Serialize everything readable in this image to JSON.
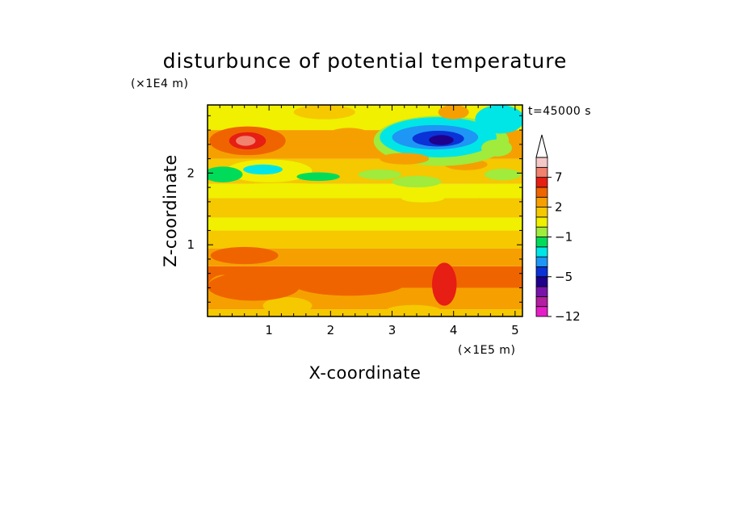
{
  "chart_data": {
    "type": "heatmap",
    "title": "disturbunce of potential temperature",
    "xlabel": "X-coordinate",
    "ylabel": "Z-coordinate",
    "x_unit": "(×1E5 m)",
    "y_unit": "(×1E4 m)",
    "time_label": "t=45000 s",
    "xlim": [
      0,
      5.12
    ],
    "ylim": [
      0,
      2.95
    ],
    "xticks": [
      "1",
      "2",
      "3",
      "4",
      "5"
    ],
    "yticks": [
      "1",
      "2"
    ],
    "xtick_values": [
      1,
      2,
      3,
      4,
      5
    ],
    "ytick_values": [
      1,
      2
    ],
    "colorbar": {
      "levels": [
        -12,
        -11,
        -9,
        -7,
        -5,
        -4,
        -3,
        -2,
        -1,
        0,
        1,
        2,
        3,
        5,
        7,
        9
      ],
      "labeled_levels": [
        "7",
        "2",
        "−1",
        "−5",
        "−12"
      ],
      "labeled_level_values": [
        7,
        2,
        -1,
        -5,
        -12
      ],
      "extend": "max",
      "colors": [
        "#e61ec8",
        "#b41ea0",
        "#7814aa",
        "#1e008c",
        "#0a32d7",
        "#1e96f5",
        "#00e6e6",
        "#00dc5a",
        "#a0eb3c",
        "#f0f000",
        "#f5c800",
        "#f5a000",
        "#f06400",
        "#e61e14",
        "#f0826e",
        "#f5c8c8",
        "#ffffff"
      ]
    },
    "bands": [
      {
        "z": [
          0.0,
          0.1
        ],
        "value": 0.5
      },
      {
        "z": [
          0.1,
          0.4
        ],
        "value": 1.5
      },
      {
        "z": [
          0.4,
          0.7
        ],
        "value": 2.5
      },
      {
        "z": [
          0.7,
          0.95
        ],
        "value": 1.5
      },
      {
        "z": [
          0.95,
          1.2
        ],
        "value": 0.5
      },
      {
        "z": [
          1.2,
          1.38
        ],
        "value": -0.5
      },
      {
        "z": [
          1.38,
          1.65
        ],
        "value": 0.5
      },
      {
        "z": [
          1.65,
          1.85
        ],
        "value": -0.5
      },
      {
        "z": [
          1.85,
          2.2
        ],
        "value": 0.5
      },
      {
        "z": [
          2.2,
          2.6
        ],
        "value": 1.5
      },
      {
        "z": [
          2.6,
          2.95
        ],
        "value": -0.5
      }
    ],
    "features": [
      {
        "x": 0.25,
        "z": 0.38,
        "rx": 0.26,
        "rz": 0.2,
        "value": 1.5
      },
      {
        "x": 1.3,
        "z": 0.15,
        "rx": 0.4,
        "rz": 0.12,
        "value": 0.5
      },
      {
        "x": 3.35,
        "z": 0.08,
        "rx": 0.45,
        "rz": 0.08,
        "value": 0.5
      },
      {
        "x": 0.75,
        "z": 0.42,
        "rx": 0.75,
        "rz": 0.2,
        "value": 2.5
      },
      {
        "x": 2.3,
        "z": 0.45,
        "rx": 0.9,
        "rz": 0.16,
        "value": 2.5
      },
      {
        "x": 3.85,
        "z": 0.45,
        "rx": 0.2,
        "rz": 0.3,
        "value": 4
      },
      {
        "x": 0.6,
        "z": 0.85,
        "rx": 0.55,
        "rz": 0.12,
        "value": 2.5
      },
      {
        "x": 1.2,
        "z": 1.78,
        "rx": 1.1,
        "rz": 0.08,
        "value": -0.5
      },
      {
        "x": 2.0,
        "z": 1.52,
        "rx": 0.35,
        "rz": 0.08,
        "value": 0.5
      },
      {
        "x": 3.2,
        "z": 1.55,
        "rx": 0.8,
        "rz": 0.1,
        "value": 0.5
      },
      {
        "x": 4.4,
        "z": 1.75,
        "rx": 0.5,
        "rz": 0.1,
        "value": -0.5
      },
      {
        "x": 1.0,
        "z": 2.03,
        "rx": 0.7,
        "rz": 0.16,
        "value": -0.5
      },
      {
        "x": 0.25,
        "z": 1.98,
        "rx": 0.32,
        "rz": 0.11,
        "value": -2.5
      },
      {
        "x": 0.9,
        "z": 2.05,
        "rx": 0.32,
        "rz": 0.07,
        "value": -3.5
      },
      {
        "x": 1.8,
        "z": 1.95,
        "rx": 0.35,
        "rz": 0.06,
        "value": -2.5
      },
      {
        "x": 2.8,
        "z": 1.98,
        "rx": 0.35,
        "rz": 0.07,
        "value": -1.5
      },
      {
        "x": 3.4,
        "z": 1.88,
        "rx": 0.4,
        "rz": 0.08,
        "value": -1.5
      },
      {
        "x": 3.5,
        "z": 1.65,
        "rx": 0.35,
        "rz": 0.06,
        "value": -0.5
      },
      {
        "x": 4.8,
        "z": 1.98,
        "rx": 0.3,
        "rz": 0.08,
        "value": -1.5
      },
      {
        "x": 4.2,
        "z": 2.12,
        "rx": 0.35,
        "rz": 0.08,
        "value": 1.5
      },
      {
        "x": 4.1,
        "z": 2.18,
        "rx": 0.25,
        "rz": 0.06,
        "value": 4
      },
      {
        "x": 0.65,
        "z": 2.45,
        "rx": 0.62,
        "rz": 0.2,
        "value": 2.5
      },
      {
        "x": 0.65,
        "z": 2.45,
        "rx": 0.3,
        "rz": 0.12,
        "value": 4
      },
      {
        "x": 0.62,
        "z": 2.45,
        "rx": 0.16,
        "rz": 0.07,
        "value": 6
      },
      {
        "x": 2.3,
        "z": 2.45,
        "rx": 0.45,
        "rz": 0.18,
        "value": 1.5
      },
      {
        "x": 0.7,
        "z": 2.85,
        "rx": 0.45,
        "rz": 0.1,
        "value": -0.5
      },
      {
        "x": 1.9,
        "z": 2.85,
        "rx": 0.5,
        "rz": 0.1,
        "value": 0.5
      },
      {
        "x": 3.8,
        "z": 2.45,
        "rx": 1.1,
        "rz": 0.35,
        "value": -1.5
      },
      {
        "x": 3.75,
        "z": 2.5,
        "rx": 0.95,
        "rz": 0.28,
        "value": -3.5
      },
      {
        "x": 3.7,
        "z": 2.5,
        "rx": 0.7,
        "rz": 0.17,
        "value": -4.5
      },
      {
        "x": 3.75,
        "z": 2.48,
        "rx": 0.42,
        "rz": 0.11,
        "value": -6
      },
      {
        "x": 3.8,
        "z": 2.46,
        "rx": 0.2,
        "rz": 0.07,
        "value": -8
      },
      {
        "x": 4.75,
        "z": 2.75,
        "rx": 0.4,
        "rz": 0.2,
        "value": -3.5
      },
      {
        "x": 4.7,
        "z": 2.35,
        "rx": 0.25,
        "rz": 0.12,
        "value": -1.5
      },
      {
        "x": 3.2,
        "z": 2.2,
        "rx": 0.4,
        "rz": 0.08,
        "value": 1.5
      },
      {
        "x": 4.0,
        "z": 2.85,
        "rx": 0.25,
        "rz": 0.1,
        "value": 1.5
      }
    ]
  }
}
